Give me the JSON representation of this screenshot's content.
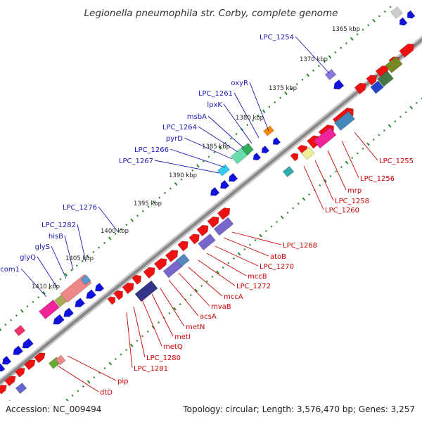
{
  "title": "Legionella pneumophila str. Corby, complete genome",
  "footer": {
    "accession": "Accession: NC_009494",
    "summary": "Topology: circular; Length: 3,576,470 bp; Genes: 3,257"
  },
  "colors": {
    "forward": "#ee1111",
    "reverse": "#1111dd",
    "backbone": "#888888",
    "label_forward": "#cc0000",
    "label_reverse": "#1a1ab4",
    "tick": "#2a8a2a"
  },
  "kbp_ticks": [
    "1365 kbp",
    "1370 kbp",
    "1375 kbp",
    "1380 kbp",
    "1385 kbp",
    "1390 kbp",
    "1395 kbp",
    "1400 kbp",
    "1405 kbp",
    "1410 kbp"
  ],
  "labels_reverse_strand": [
    "LPC_1254",
    "oxyR",
    "LPC_1261",
    "lpxK",
    "msbA",
    "LPC_1264",
    "pyrD",
    "LPC_1266",
    "LPC_1267",
    "LPC_1276",
    "LPC_1282",
    "hisB",
    "glyS",
    "glyQ",
    "com1"
  ],
  "labels_forward_strand": [
    "LPC_1255",
    "LPC_1256",
    "mrp",
    "LPC_1258",
    "LPC_1260",
    "LPC_1268",
    "atoB",
    "LPC_1270",
    "mccB",
    "LPC_1272",
    "mccA",
    "mvaB",
    "acsA",
    "metN",
    "metI",
    "metQ",
    "LPC_1280",
    "LPC_1281",
    "pip",
    "dtD"
  ]
}
